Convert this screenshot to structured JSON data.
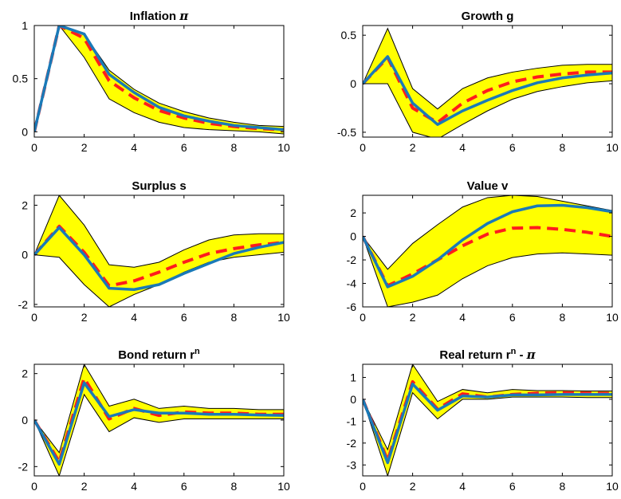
{
  "chart_data": [
    {
      "type": "line",
      "title": "Inflation π",
      "title_main": "Inflation ",
      "title_greek": "π",
      "x": [
        0,
        1,
        2,
        3,
        4,
        5,
        6,
        7,
        8,
        9,
        10
      ],
      "xlim": [
        0,
        10
      ],
      "ylim": [
        -0.05,
        1.0
      ],
      "xticks": [
        "0",
        "2",
        "4",
        "6",
        "8",
        "10"
      ],
      "yticks": [
        "0",
        "0.5",
        "1"
      ],
      "band_upper": [
        0,
        1.0,
        0.92,
        0.58,
        0.4,
        0.27,
        0.19,
        0.13,
        0.09,
        0.06,
        0.05
      ],
      "band_lower": [
        0,
        1.0,
        0.7,
        0.31,
        0.18,
        0.09,
        0.04,
        0.02,
        0.01,
        0.0,
        -0.02
      ],
      "series": [
        {
          "values": [
            0,
            1.0,
            0.88,
            0.48,
            0.32,
            0.2,
            0.13,
            0.08,
            0.05,
            0.03,
            0.02
          ],
          "color": "#ff1c1c",
          "style": "dashed"
        },
        {
          "values": [
            0,
            1.0,
            0.92,
            0.54,
            0.37,
            0.23,
            0.15,
            0.1,
            0.06,
            0.04,
            0.02
          ],
          "color": "#1a7ab8",
          "style": "solid"
        }
      ]
    },
    {
      "type": "line",
      "title": "Growth g",
      "title_main": "Growth g",
      "x": [
        0,
        1,
        2,
        3,
        4,
        5,
        6,
        7,
        8,
        9,
        10
      ],
      "xlim": [
        0,
        10
      ],
      "ylim": [
        -0.55,
        0.6
      ],
      "xticks": [
        "0",
        "2",
        "4",
        "6",
        "8",
        "10"
      ],
      "yticks": [
        "-0.5",
        "0",
        "0.5"
      ],
      "band_upper": [
        0,
        0.57,
        -0.05,
        -0.26,
        -0.05,
        0.06,
        0.12,
        0.16,
        0.19,
        0.2,
        0.2
      ],
      "band_lower": [
        0,
        0.0,
        -0.5,
        -0.57,
        -0.42,
        -0.28,
        -0.16,
        -0.08,
        -0.03,
        0.01,
        0.03
      ],
      "series": [
        {
          "values": [
            0,
            0.27,
            -0.25,
            -0.4,
            -0.2,
            -0.07,
            0.02,
            0.07,
            0.1,
            0.12,
            0.12
          ],
          "color": "#ff1c1c",
          "style": "dashed"
        },
        {
          "values": [
            0,
            0.28,
            -0.2,
            -0.42,
            -0.28,
            -0.17,
            -0.07,
            0.01,
            0.06,
            0.09,
            0.11
          ],
          "color": "#1a7ab8",
          "style": "solid"
        }
      ]
    },
    {
      "type": "line",
      "title": "Surplus s",
      "title_main": "Surplus s",
      "x": [
        0,
        1,
        2,
        3,
        4,
        5,
        6,
        7,
        8,
        9,
        10
      ],
      "xlim": [
        0,
        10
      ],
      "ylim": [
        -2.1,
        2.4
      ],
      "xticks": [
        "0",
        "2",
        "4",
        "6",
        "8",
        "10"
      ],
      "yticks": [
        "-2",
        "0",
        "2"
      ],
      "band_upper": [
        0,
        2.4,
        1.2,
        -0.4,
        -0.5,
        -0.3,
        0.2,
        0.6,
        0.8,
        0.85,
        0.85
      ],
      "band_lower": [
        0,
        -0.1,
        -1.2,
        -2.1,
        -1.6,
        -1.2,
        -0.7,
        -0.3,
        -0.1,
        0.0,
        0.1
      ],
      "series": [
        {
          "values": [
            0,
            1.15,
            0.1,
            -1.25,
            -1.05,
            -0.7,
            -0.3,
            0.05,
            0.25,
            0.4,
            0.5
          ],
          "color": "#ff1c1c",
          "style": "dashed"
        },
        {
          "values": [
            0,
            1.1,
            0.0,
            -1.35,
            -1.4,
            -1.2,
            -0.75,
            -0.35,
            0.05,
            0.3,
            0.5
          ],
          "color": "#1a7ab8",
          "style": "solid"
        }
      ]
    },
    {
      "type": "line",
      "title": "Value v",
      "title_main": "Value v",
      "x": [
        0,
        1,
        2,
        3,
        4,
        5,
        6,
        7,
        8,
        9,
        10
      ],
      "xlim": [
        0,
        10
      ],
      "ylim": [
        -6,
        3.5
      ],
      "xticks": [
        "0",
        "2",
        "4",
        "6",
        "8",
        "10"
      ],
      "yticks": [
        "-6",
        "-4",
        "-2",
        "0",
        "2"
      ],
      "band_upper": [
        0,
        -2.8,
        -0.6,
        1.0,
        2.5,
        3.3,
        3.5,
        3.4,
        3.0,
        2.6,
        2.2
      ],
      "band_lower": [
        0,
        -6.0,
        -5.6,
        -5.0,
        -3.6,
        -2.5,
        -1.8,
        -1.5,
        -1.4,
        -1.5,
        -1.6
      ],
      "series": [
        {
          "values": [
            0,
            -4.2,
            -3.2,
            -2.0,
            -0.8,
            0.2,
            0.7,
            0.75,
            0.6,
            0.35,
            0.0
          ],
          "color": "#ff1c1c",
          "style": "dashed"
        },
        {
          "values": [
            0,
            -4.3,
            -3.4,
            -2.0,
            -0.3,
            1.1,
            2.1,
            2.6,
            2.65,
            2.45,
            2.1
          ],
          "color": "#1a7ab8",
          "style": "solid"
        }
      ]
    },
    {
      "type": "line",
      "title": "Bond return rⁿ",
      "title_main": "Bond return r",
      "title_sup": "n",
      "x": [
        0,
        1,
        2,
        3,
        4,
        5,
        6,
        7,
        8,
        9,
        10
      ],
      "xlim": [
        0,
        10
      ],
      "ylim": [
        -2.4,
        2.4
      ],
      "xticks": [
        "0",
        "2",
        "4",
        "6",
        "8",
        "10"
      ],
      "yticks": [
        "-2",
        "0",
        "2"
      ],
      "band_upper": [
        0,
        -1.4,
        2.4,
        0.6,
        0.9,
        0.5,
        0.6,
        0.5,
        0.5,
        0.45,
        0.45
      ],
      "band_lower": [
        0,
        -2.4,
        1.1,
        -0.5,
        0.1,
        -0.1,
        0.05,
        0.05,
        0.05,
        0.05,
        0.05
      ],
      "series": [
        {
          "values": [
            0,
            -1.8,
            1.8,
            0.05,
            0.5,
            0.2,
            0.35,
            0.3,
            0.3,
            0.25,
            0.25
          ],
          "color": "#ff1c1c",
          "style": "dashed"
        },
        {
          "values": [
            0,
            -1.9,
            1.6,
            0.15,
            0.45,
            0.3,
            0.3,
            0.25,
            0.25,
            0.22,
            0.2
          ],
          "color": "#1a7ab8",
          "style": "solid"
        }
      ]
    },
    {
      "type": "line",
      "title": "Real return rⁿ - π",
      "title_main": "Real return r",
      "title_sup": "n",
      "title_tail": " - ",
      "title_greek": "π",
      "x": [
        0,
        1,
        2,
        3,
        4,
        5,
        6,
        7,
        8,
        9,
        10
      ],
      "xlim": [
        0,
        10
      ],
      "ylim": [
        -3.5,
        1.6
      ],
      "xticks": [
        "0",
        "2",
        "4",
        "6",
        "8",
        "10"
      ],
      "yticks": [
        "-3",
        "-2",
        "-1",
        "0",
        "1"
      ],
      "band_upper": [
        0,
        -2.3,
        1.6,
        -0.1,
        0.45,
        0.3,
        0.45,
        0.4,
        0.4,
        0.38,
        0.38
      ],
      "band_lower": [
        0,
        -3.5,
        0.3,
        -0.9,
        0.0,
        0.0,
        0.1,
        0.1,
        0.1,
        0.08,
        0.08
      ],
      "series": [
        {
          "values": [
            0,
            -2.8,
            0.8,
            -0.45,
            0.25,
            0.1,
            0.22,
            0.28,
            0.3,
            0.28,
            0.27
          ],
          "color": "#ff1c1c",
          "style": "dashed"
        },
        {
          "values": [
            0,
            -2.9,
            0.7,
            -0.5,
            0.15,
            0.1,
            0.2,
            0.2,
            0.22,
            0.22,
            0.22
          ],
          "color": "#1a7ab8",
          "style": "solid"
        }
      ]
    }
  ],
  "colors": {
    "band": "#ffff00",
    "band_edge": "#000000",
    "axis": "#000000"
  }
}
